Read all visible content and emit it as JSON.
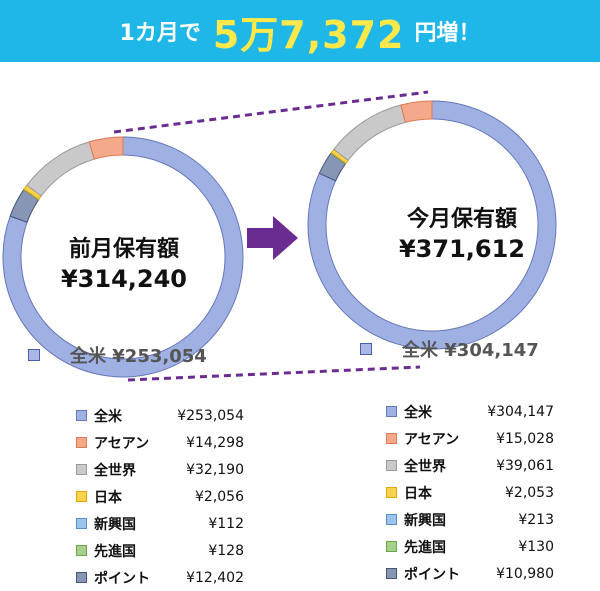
{
  "header": {
    "prefix": "1カ月で",
    "amount": "5万7,372",
    "suffix": "円増！"
  },
  "chart_data": [
    {
      "type": "donut",
      "center_title": "前月保有額",
      "center_value": "¥314,240",
      "callout": "全米 ¥253,054",
      "categories": [
        "全米",
        "アセアン",
        "全世界",
        "日本",
        "新興国",
        "先進国",
        "ポイント"
      ],
      "values": [
        253054,
        14298,
        32190,
        2056,
        112,
        128,
        12402
      ],
      "value_labels": [
        "¥253,054",
        "¥14,298",
        "¥32,190",
        "¥2,056",
        "¥112",
        "¥128",
        "¥12,402"
      ]
    },
    {
      "type": "donut",
      "center_title": "今月保有額",
      "center_value": "¥371,612",
      "callout": "全米 ¥304,147",
      "categories": [
        "全米",
        "アセアン",
        "全世界",
        "日本",
        "新興国",
        "先進国",
        "ポイント"
      ],
      "values": [
        304147,
        15028,
        39061,
        2053,
        213,
        130,
        10980
      ],
      "value_labels": [
        "¥304,147",
        "¥15,028",
        "¥39,061",
        "¥2,053",
        "¥213",
        "¥130",
        "¥10,980"
      ]
    }
  ],
  "colors": {
    "segments": [
      "#9fb0e3",
      "#f4a98a",
      "#c9c9c9",
      "#ffd24d",
      "#9cc3ea",
      "#a8d08d",
      "#8796b5"
    ],
    "segment_borders": [
      "#6677bb",
      "#e07a55",
      "#9a9a9a",
      "#e0a800",
      "#5a8fc8",
      "#6aa64a",
      "#46557a"
    ],
    "banner": "#1fb6e8",
    "accent": "#ffe94a",
    "arrow": "#6a2c91",
    "dash": "#6a2c91"
  }
}
